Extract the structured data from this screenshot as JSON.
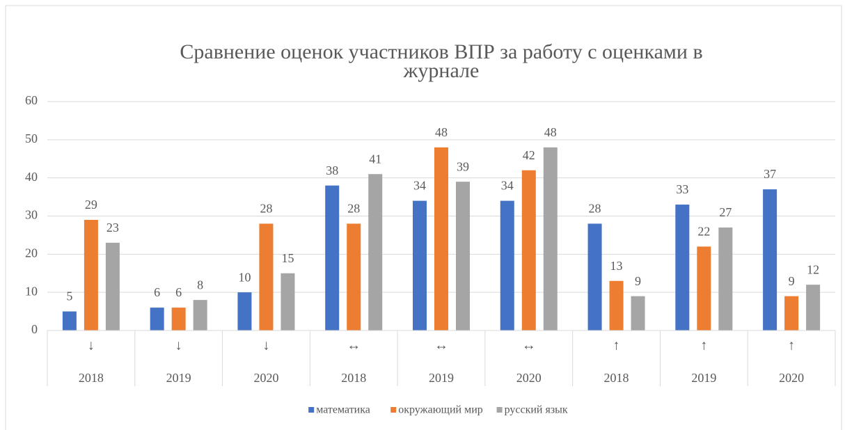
{
  "chart_data": {
    "type": "bar",
    "title": [
      "Сравнение оценок участников ВПР за работу с оценками в",
      "журнале"
    ],
    "category_marks": [
      "↓",
      "↓",
      "↓",
      "↔",
      "↔",
      "↔",
      "↑",
      "↑",
      "↑"
    ],
    "categories": [
      "2018",
      "2019",
      "2020",
      "2018",
      "2019",
      "2020",
      "2018",
      "2019",
      "2020"
    ],
    "series": [
      {
        "name": "математика",
        "color": "#4472c4",
        "values": [
          5,
          6,
          10,
          38,
          34,
          34,
          28,
          33,
          37
        ]
      },
      {
        "name": "окружающий мир",
        "color": "#ed7d31",
        "values": [
          29,
          6,
          28,
          28,
          48,
          42,
          13,
          22,
          9
        ]
      },
      {
        "name": "русский язык",
        "color": "#a5a5a5",
        "values": [
          23,
          8,
          15,
          41,
          39,
          48,
          9,
          27,
          12
        ]
      }
    ],
    "ylim": [
      0,
      60
    ],
    "yticks": [
      0,
      10,
      20,
      30,
      40,
      50,
      60
    ],
    "grid": true,
    "legend": "bottom"
  }
}
